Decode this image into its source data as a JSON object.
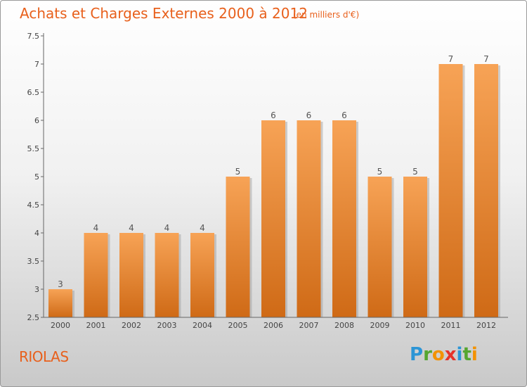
{
  "header": {
    "title": "Achats et Charges Externes 2000 à 2012",
    "subtitle": "(en milliers d'€)"
  },
  "footer": {
    "commune": "RIOLAS",
    "logo_text": "Proxiti"
  },
  "colors": {
    "accent": "#e8601c",
    "bar_top": "#f7a356",
    "bar_bottom": "#cf6a16"
  },
  "chart_data": {
    "type": "bar",
    "title": "Achats et Charges Externes 2000 à 2012",
    "subtitle": "(en milliers d'€)",
    "categories": [
      "2000",
      "2001",
      "2002",
      "2003",
      "2004",
      "2005",
      "2006",
      "2007",
      "2008",
      "2009",
      "2010",
      "2011",
      "2012"
    ],
    "values": [
      3,
      4,
      4,
      4,
      4,
      5,
      6,
      6,
      6,
      5,
      5,
      7,
      7
    ],
    "data_labels": [
      "3",
      "4",
      "4",
      "4",
      "4",
      "5",
      "6",
      "6",
      "6",
      "5",
      "5",
      "7",
      "7"
    ],
    "ylim": [
      2.5,
      7.5
    ],
    "yticks": [
      2.5,
      3,
      3.5,
      4,
      4.5,
      5,
      5.5,
      6,
      6.5,
      7,
      7.5
    ],
    "ytick_labels": [
      "2.5",
      "3",
      "3.5",
      "4",
      "4.5",
      "5",
      "5.5",
      "6",
      "6.5",
      "7",
      "7.5"
    ],
    "grid": false,
    "legend": "none"
  }
}
